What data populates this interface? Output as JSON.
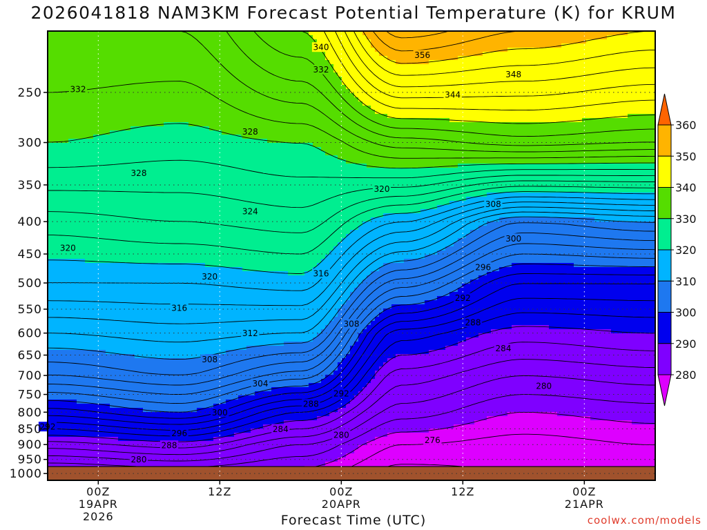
{
  "chart_data": {
    "type": "heatmap",
    "title": "2026041818 NAM3KM Forecast Potential Temperature (K) for KRUM",
    "xlabel": "Forecast Time (UTC)",
    "ylabel": "",
    "credit": "coolwx.com/models",
    "y_axis": {
      "scale": "log-pressure",
      "reversed": true,
      "range": [
        1025,
        200
      ],
      "ticks": [
        250,
        300,
        350,
        400,
        450,
        500,
        550,
        600,
        650,
        700,
        750,
        800,
        850,
        900,
        950,
        1000
      ]
    },
    "x_axis": {
      "range_hours": [
        -5,
        55
      ],
      "grid": "dotted",
      "ticks": [
        {
          "hour": 0,
          "lines": [
            "00Z",
            "19APR",
            "2026"
          ]
        },
        {
          "hour": 12,
          "lines": [
            "12Z"
          ]
        },
        {
          "hour": 24,
          "lines": [
            "00Z",
            "20APR"
          ]
        },
        {
          "hour": 36,
          "lines": [
            "12Z"
          ]
        },
        {
          "hour": 48,
          "lines": [
            "00Z",
            "21APR"
          ]
        }
      ]
    },
    "colorbar": {
      "levels": [
        280,
        290,
        300,
        310,
        320,
        330,
        340,
        350,
        360
      ],
      "colors": [
        "#dd00ff",
        "#7f00ff",
        "#0000ee",
        "#1e78f0",
        "#00b4ff",
        "#00ee90",
        "#55dd00",
        "#ffff00",
        "#ffb400",
        "#ff6400"
      ],
      "extend": "both"
    },
    "fill_bands": [
      {
        "min": 0,
        "max": 280,
        "color": "#dd00ff"
      },
      {
        "min": 280,
        "max": 290,
        "color": "#7f00ff"
      },
      {
        "min": 290,
        "max": 300,
        "color": "#0000ee"
      },
      {
        "min": 300,
        "max": 310,
        "color": "#1e78f0"
      },
      {
        "min": 310,
        "max": 320,
        "color": "#00b4ff"
      },
      {
        "min": 320,
        "max": 330,
        "color": "#00ee90"
      },
      {
        "min": 330,
        "max": 340,
        "color": "#55dd00"
      },
      {
        "min": 340,
        "max": 350,
        "color": "#ffff00"
      },
      {
        "min": 350,
        "max": 360,
        "color": "#ffb400"
      },
      {
        "min": 360,
        "max": 400,
        "color": "#ff6400"
      }
    ],
    "contour_interval": 2,
    "contour_labels": [
      {
        "value": 340,
        "hour": 22,
        "p": 212
      },
      {
        "value": 356,
        "hour": 32,
        "p": 218
      },
      {
        "value": 332,
        "hour": 22,
        "p": 230
      },
      {
        "value": 348,
        "hour": 41,
        "p": 234
      },
      {
        "value": 332,
        "hour": -2,
        "p": 247
      },
      {
        "value": 344,
        "hour": 35,
        "p": 252
      },
      {
        "value": 328,
        "hour": 15,
        "p": 288
      },
      {
        "value": 328,
        "hour": 4,
        "p": 335
      },
      {
        "value": 320,
        "hour": 28,
        "p": 355
      },
      {
        "value": 308,
        "hour": 39,
        "p": 375
      },
      {
        "value": 324,
        "hour": 15,
        "p": 385
      },
      {
        "value": 300,
        "hour": 41,
        "p": 425
      },
      {
        "value": 320,
        "hour": -3,
        "p": 440
      },
      {
        "value": 296,
        "hour": 38,
        "p": 472
      },
      {
        "value": 316,
        "hour": 22,
        "p": 483
      },
      {
        "value": 320,
        "hour": 11,
        "p": 488
      },
      {
        "value": 292,
        "hour": 36,
        "p": 528
      },
      {
        "value": 316,
        "hour": 8,
        "p": 547
      },
      {
        "value": 308,
        "hour": 25,
        "p": 580
      },
      {
        "value": 288,
        "hour": 37,
        "p": 577
      },
      {
        "value": 312,
        "hour": 15,
        "p": 600
      },
      {
        "value": 284,
        "hour": 40,
        "p": 634
      },
      {
        "value": 308,
        "hour": 11,
        "p": 660
      },
      {
        "value": 304,
        "hour": 16,
        "p": 720
      },
      {
        "value": 280,
        "hour": 44,
        "p": 727
      },
      {
        "value": 292,
        "hour": 24,
        "p": 747
      },
      {
        "value": 288,
        "hour": 21,
        "p": 776
      },
      {
        "value": 300,
        "hour": 12,
        "p": 800
      },
      {
        "value": 292,
        "hour": -5,
        "p": 843
      },
      {
        "value": 284,
        "hour": 18,
        "p": 850
      },
      {
        "value": 296,
        "hour": 8,
        "p": 863
      },
      {
        "value": 280,
        "hour": 24,
        "p": 868
      },
      {
        "value": 276,
        "hour": 33,
        "p": 885
      },
      {
        "value": 288,
        "hour": 7,
        "p": 902
      },
      {
        "value": 280,
        "hour": 4,
        "p": 950
      }
    ],
    "terrain": {
      "surface_p": 975,
      "color": "#a0522d"
    },
    "field_model": {
      "theta_top_p": 200,
      "theta_top_left": 335,
      "theta_top_right": 358,
      "profile_points": [
        {
          "hour": -5,
          "p": [
            200,
            300,
            400,
            500,
            600,
            700,
            800,
            900,
            1000
          ],
          "theta": [
            334,
            330,
            323,
            318,
            312,
            306,
            297,
            287,
            279
          ]
        },
        {
          "hour": 8,
          "p": [
            200,
            300,
            400,
            500,
            600,
            700,
            800,
            900,
            1000
          ],
          "theta": [
            334,
            329,
            324,
            318,
            313,
            308,
            300,
            289,
            280
          ]
        },
        {
          "hour": 20,
          "p": [
            200,
            300,
            400,
            500,
            600,
            700,
            800,
            900,
            1000
          ],
          "theta": [
            340,
            330,
            325,
            319,
            312,
            303,
            292,
            284,
            279
          ]
        },
        {
          "hour": 30,
          "p": [
            200,
            300,
            400,
            500,
            600,
            700,
            800,
            900,
            1000
          ],
          "theta": [
            355,
            335,
            318,
            305,
            293,
            287,
            283,
            278,
            275
          ]
        },
        {
          "hour": 42,
          "p": [
            200,
            300,
            400,
            500,
            600,
            700,
            800,
            900,
            1000
          ],
          "theta": [
            352,
            337,
            308,
            296,
            289,
            284,
            280,
            277,
            276
          ]
        },
        {
          "hour": 55,
          "p": [
            200,
            300,
            400,
            500,
            600,
            700,
            800,
            900,
            1000
          ],
          "theta": [
            350,
            336,
            310,
            296,
            290,
            285,
            281,
            278,
            277
          ]
        }
      ]
    }
  }
}
